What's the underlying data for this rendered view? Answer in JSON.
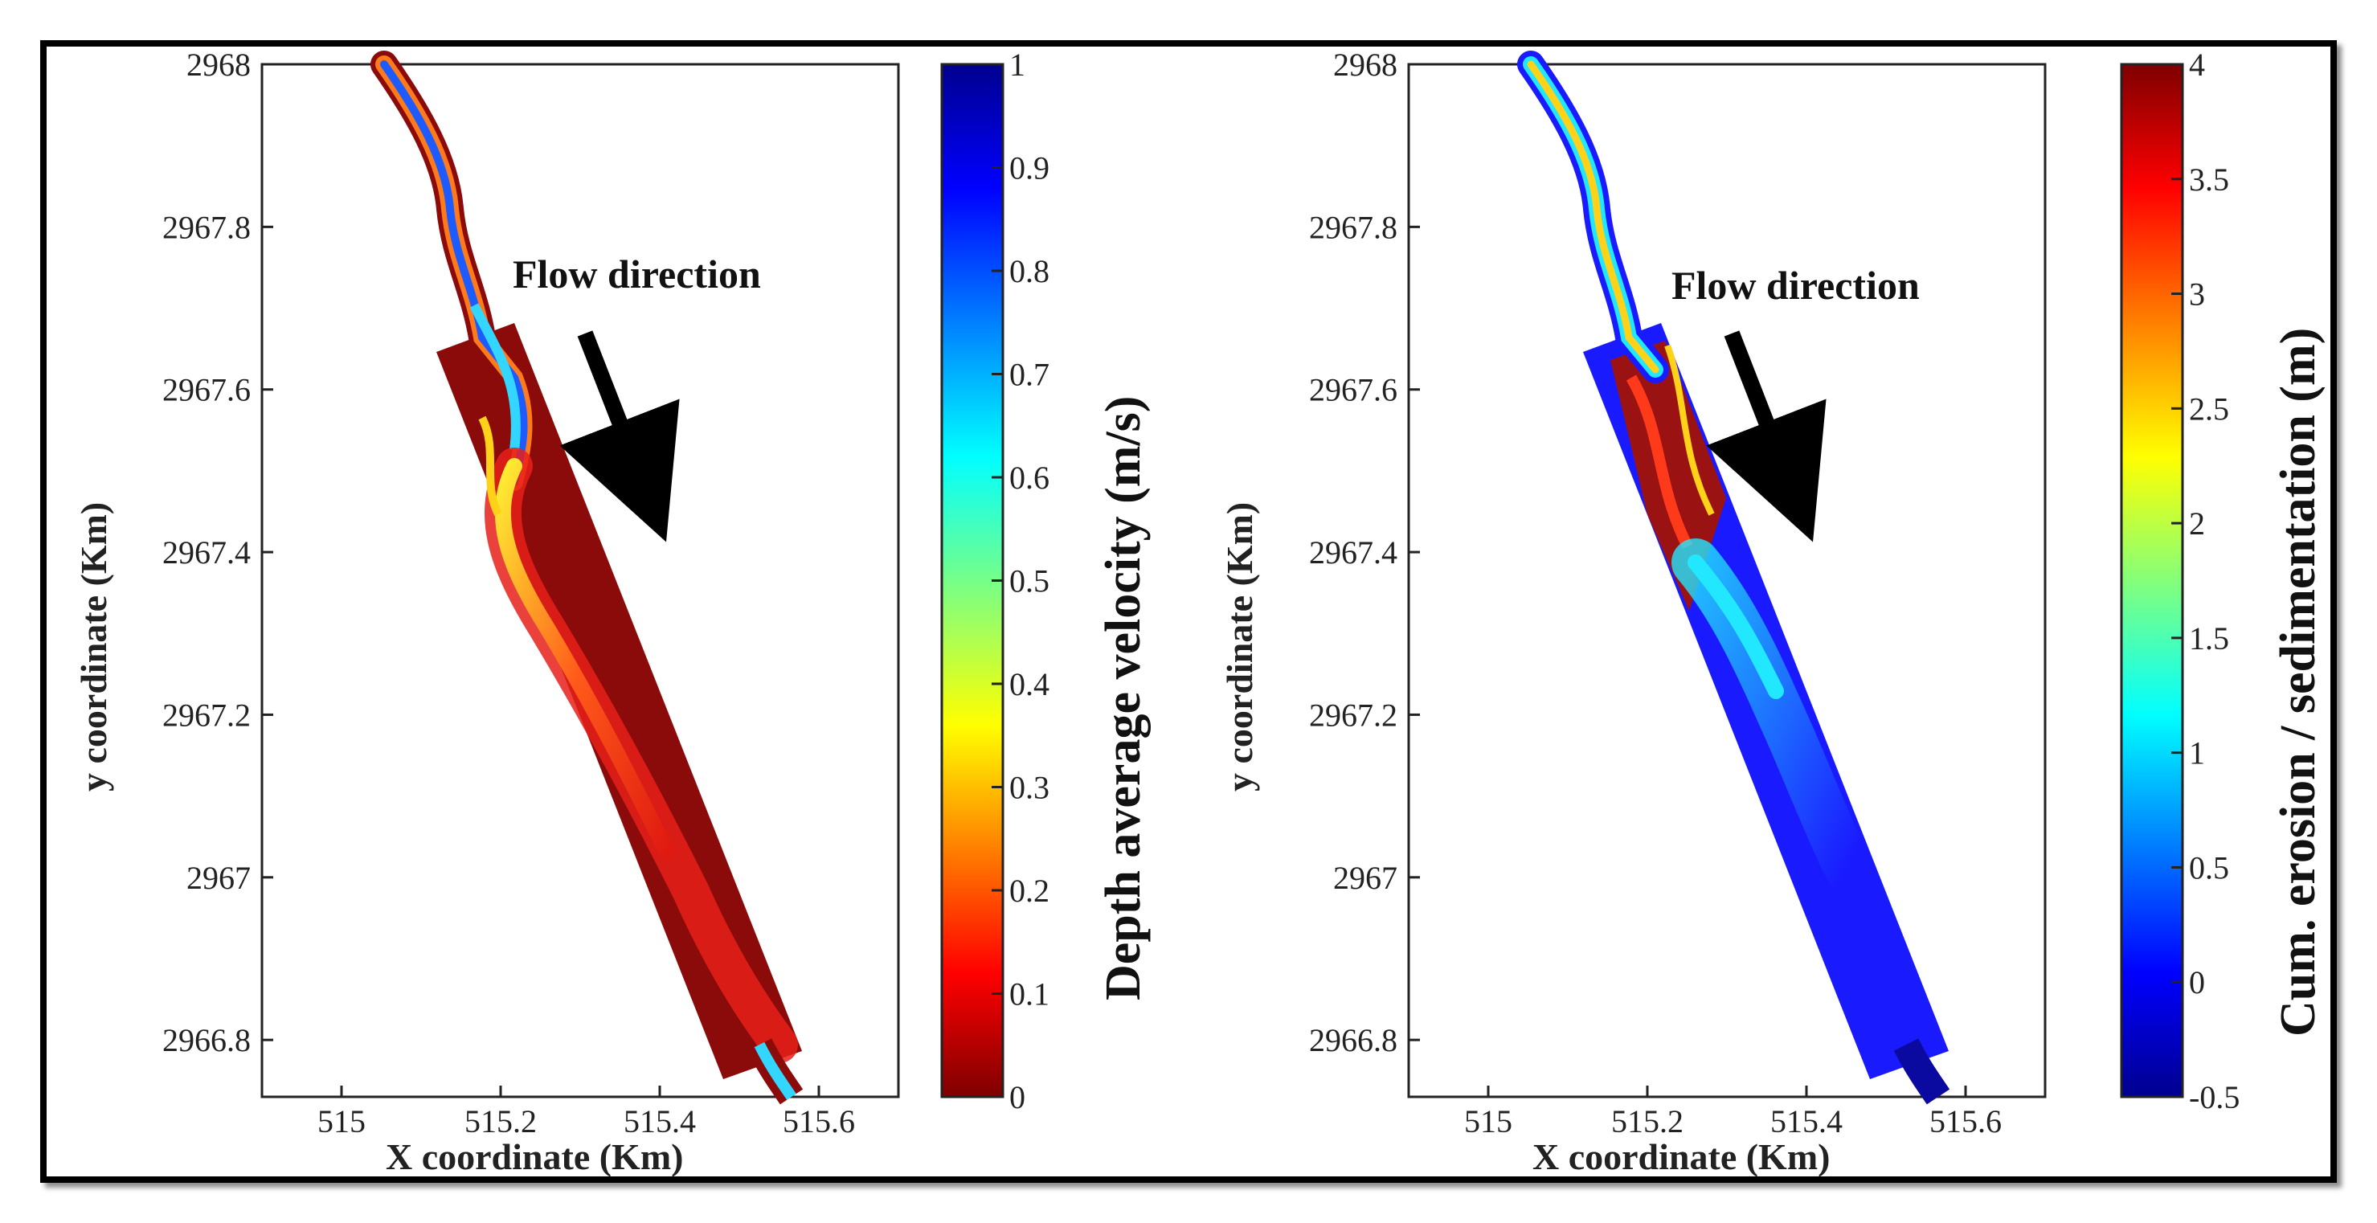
{
  "chart_data": [
    {
      "type": "heatmap",
      "title": "",
      "xlabel": "X coordinate (Km)",
      "ylabel": "y  coordinate (Km)",
      "xlim": [
        514.9,
        515.7
      ],
      "ylim": [
        2966.73,
        2968.0
      ],
      "x_ticks": [
        "515",
        "515.2",
        "515.4",
        "515.6"
      ],
      "y_ticks": [
        "2968",
        "2967.8",
        "2967.6",
        "2967.4",
        "2967.2",
        "2967",
        "2966.8"
      ],
      "colorbar": {
        "label": "Depth average velocity (m/s)",
        "range": [
          0,
          1
        ],
        "ticks": [
          "1",
          "0.9",
          "0.8",
          "0.7",
          "0.6",
          "0.5",
          "0.4",
          "0.3",
          "0.2",
          "0.1",
          "0"
        ]
      },
      "annotation": "Flow direction",
      "colors": {
        "background": "#8b0a0a",
        "core": "#ff3a1a",
        "channel": "#1e5bff"
      }
    },
    {
      "type": "heatmap",
      "title": "",
      "xlabel": "X coordinate (Km)",
      "ylabel": "y  coordinate (Km)",
      "xlim": [
        514.9,
        515.7
      ],
      "ylim": [
        2966.73,
        2968.0
      ],
      "x_ticks": [
        "515",
        "515.2",
        "515.4",
        "515.6"
      ],
      "y_ticks": [
        "2968",
        "2967.8",
        "2967.6",
        "2967.4",
        "2967.2",
        "2967",
        "2966.8"
      ],
      "colorbar": {
        "label": "Cum. erosion / sedimentation (m)",
        "range": [
          -0.5,
          4
        ],
        "ticks": [
          "4",
          "3.5",
          "3",
          "2.5",
          "2",
          "1.5",
          "1",
          "0.5",
          "0",
          "-0.5"
        ]
      },
      "annotation": "Flow direction",
      "colors": {
        "background": "#1a1aff",
        "deposit": "#9b1212",
        "channel": "#ffd21a"
      }
    }
  ]
}
